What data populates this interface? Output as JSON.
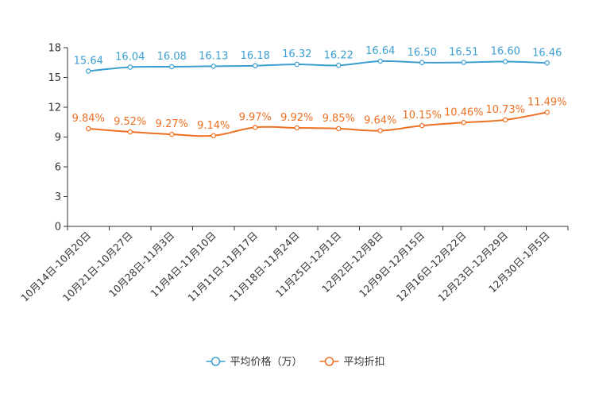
{
  "chart_data": {
    "type": "line",
    "categories": [
      "10月14日-10月20日",
      "10月21日-10月27日",
      "10月28日-11月3日",
      "11月4日-11月10日",
      "11月11日-11月17日",
      "11月18日-11月24日",
      "11月25日-12月1日",
      "12月2日-12月8日",
      "12月9日-12月15日",
      "12月16日-12月22日",
      "12月23日-12月29日",
      "12月30日-1月5日"
    ],
    "series": [
      {
        "name": "平均价格（万）",
        "color": "#3a9fd0",
        "values": [
          15.64,
          16.04,
          16.08,
          16.13,
          16.18,
          16.32,
          16.22,
          16.64,
          16.5,
          16.51,
          16.6,
          16.46
        ],
        "labels": [
          "15.64",
          "16.04",
          "16.08",
          "16.13",
          "16.18",
          "16.32",
          "16.22",
          "16.64",
          "16.50",
          "16.51",
          "16.60",
          "16.46"
        ]
      },
      {
        "name": "平均折扣",
        "color": "#ee7023",
        "values": [
          9.84,
          9.52,
          9.27,
          9.14,
          9.97,
          9.92,
          9.85,
          9.64,
          10.15,
          10.46,
          10.73,
          11.49
        ],
        "labels": [
          "9.84%",
          "9.52%",
          "9.27%",
          "9.14%",
          "9.97%",
          "9.92%",
          "9.85%",
          "9.64%",
          "10.15%",
          "10.46%",
          "10.73%",
          "11.49%"
        ]
      }
    ],
    "ylim": [
      0,
      18
    ],
    "yticks": [
      0,
      3,
      6,
      9,
      12,
      15,
      18
    ],
    "title": "",
    "xlabel": "",
    "ylabel": "",
    "legend_position": "bottom-center",
    "grid": false
  }
}
